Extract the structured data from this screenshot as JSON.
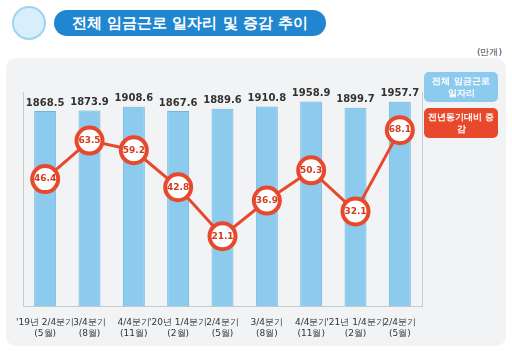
{
  "chart_data": {
    "type": "bar",
    "title": "전체 임금근로 일자리 및 증감 추이",
    "subtitle": "(만개)",
    "categories": [
      [
        "'19년 2/4분기",
        "(5월)"
      ],
      [
        "3/4분기",
        "(8월)"
      ],
      [
        "4/4분기",
        "(11월)"
      ],
      [
        "'20년 1/4분기",
        "(2월)"
      ],
      [
        "2/4분기",
        "(5월)"
      ],
      [
        "3/4분기",
        "(8월)"
      ],
      [
        "4/4분기",
        "(11월)"
      ],
      [
        "'21년 1/4분기",
        "(2월)"
      ],
      [
        "2/4분기",
        "(5월)"
      ]
    ],
    "series": [
      {
        "name": "전체 임금근로 일자리",
        "type": "bar",
        "color": "#8ccbee",
        "values": [
          1868.5,
          1873.9,
          1908.6,
          1867.6,
          1889.6,
          1910.8,
          1958.9,
          1899.7,
          1957.7
        ]
      },
      {
        "name": "전년동기대비 증감",
        "type": "line",
        "color": "#e8482c",
        "marker": "circle",
        "axis": "y2",
        "values": [
          46.4,
          63.5,
          59.2,
          42.8,
          21.1,
          36.9,
          50.3,
          32.1,
          68.1
        ]
      }
    ],
    "ylim": [
      0,
      2050
    ],
    "y2lim": [
      -10,
      85
    ],
    "grid": false,
    "legend": "upper right",
    "data_labels": true,
    "tick_labels": "x"
  }
}
